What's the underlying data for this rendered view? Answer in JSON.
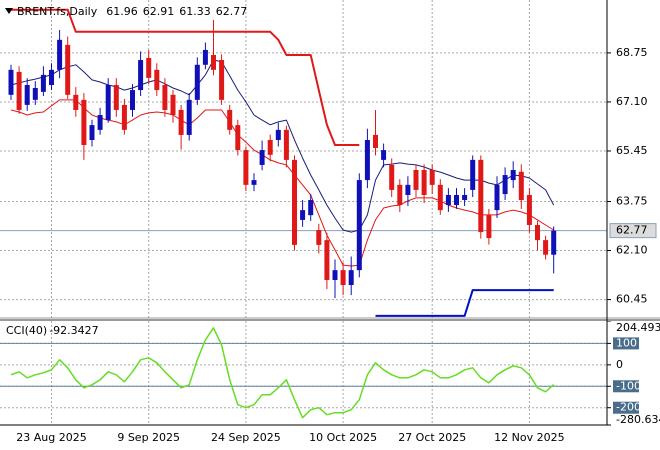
{
  "chart_data": [
    {
      "type": "candlestick",
      "title": "BRENT.fs,Daily",
      "categories": [
        null,
        null,
        null,
        null,
        null,
        "23 Aug 2025",
        null,
        null,
        null,
        null,
        null,
        null,
        null,
        null,
        null,
        null,
        null,
        "9 Sep 2025",
        null,
        null,
        null,
        null,
        null,
        null,
        null,
        null,
        null,
        null,
        null,
        "24 Sep 2025",
        null,
        null,
        null,
        null,
        null,
        null,
        null,
        null,
        null,
        null,
        null,
        "10 Oct 2025",
        null,
        null,
        null,
        null,
        null,
        null,
        null,
        null,
        null,
        null,
        "27 Oct 2025",
        null,
        null,
        null,
        null,
        null,
        null,
        null,
        null,
        null,
        null,
        null,
        "12 Nov 2025",
        null,
        null,
        null
      ],
      "open": [
        67.34,
        68.11,
        67.0,
        67.17,
        67.44,
        67.67,
        68.18,
        69.02,
        67.34,
        67.17,
        65.82,
        66.16,
        66.49,
        67.67,
        67.0,
        66.83,
        67.5,
        68.58,
        68.18,
        67.67,
        67.34,
        66.83,
        65.99,
        67.17,
        68.35,
        68.68,
        68.51,
        66.83,
        66.32,
        65.48,
        64.31,
        64.98,
        65.82,
        65.82,
        66.16,
        65.15,
        63.13,
        63.29,
        62.79,
        62.45,
        61.11,
        61.44,
        60.94,
        61.44,
        64.47,
        65.99,
        65.15,
        64.98,
        64.31,
        63.97,
        64.81,
        64.81,
        64.81,
        64.31,
        63.63,
        63.63,
        63.8,
        64.14,
        65.15,
        63.29,
        63.46,
        64.0,
        64.47,
        64.75,
        63.97,
        62.96,
        62.45,
        61.96
      ],
      "high": [
        68.35,
        68.3,
        67.9,
        67.8,
        68.3,
        68.4,
        69.52,
        69.3,
        67.6,
        67.4,
        66.5,
        66.9,
        67.9,
        67.9,
        67.2,
        67.7,
        68.8,
        68.85,
        68.4,
        67.9,
        67.5,
        67.0,
        67.4,
        68.6,
        69.1,
        69.86,
        68.7,
        67.0,
        66.5,
        65.6,
        64.7,
        65.8,
        66.0,
        66.4,
        66.3,
        65.3,
        63.8,
        64.0,
        63.0,
        62.7,
        61.8,
        61.7,
        61.9,
        64.7,
        66.2,
        66.83,
        65.7,
        65.2,
        64.5,
        64.6,
        65.0,
        65.0,
        65.0,
        64.5,
        64.2,
        64.2,
        64.2,
        65.3,
        65.3,
        63.5,
        64.6,
        64.9,
        65.1,
        65.0,
        64.2,
        63.1,
        62.6,
        62.91
      ],
      "low": [
        67.17,
        66.7,
        66.8,
        67.0,
        67.3,
        67.5,
        67.9,
        67.2,
        66.6,
        65.15,
        65.6,
        66.0,
        66.4,
        66.6,
        66.0,
        66.6,
        67.3,
        67.7,
        67.3,
        66.6,
        66.4,
        65.5,
        65.8,
        67.0,
        68.2,
        68.0,
        67.0,
        66.0,
        65.3,
        64.1,
        64.1,
        64.8,
        65.1,
        65.6,
        64.9,
        62.1,
        62.9,
        63.1,
        62.0,
        60.8,
        60.5,
        60.6,
        60.6,
        61.2,
        64.2,
        65.3,
        64.9,
        63.9,
        63.4,
        63.6,
        63.9,
        63.7,
        64.0,
        63.3,
        63.4,
        63.5,
        63.6,
        63.9,
        62.5,
        62.3,
        63.2,
        63.8,
        64.2,
        63.5,
        62.7,
        62.1,
        61.8,
        61.33
      ],
      "close": [
        68.18,
        66.83,
        67.67,
        67.57,
        68.01,
        68.18,
        69.19,
        67.34,
        66.83,
        65.65,
        66.32,
        66.66,
        67.67,
        66.83,
        66.16,
        67.5,
        68.51,
        67.91,
        67.5,
        66.83,
        66.66,
        65.99,
        67.17,
        68.35,
        68.85,
        68.18,
        67.17,
        66.16,
        65.48,
        64.31,
        64.47,
        65.48,
        65.32,
        66.16,
        65.15,
        62.29,
        63.46,
        63.8,
        62.29,
        61.11,
        61.44,
        60.94,
        61.44,
        64.47,
        65.82,
        65.55,
        65.48,
        64.14,
        63.63,
        64.31,
        64.14,
        63.97,
        64.31,
        63.46,
        63.97,
        63.97,
        63.97,
        65.15,
        62.72,
        62.52,
        64.31,
        64.64,
        64.81,
        63.8,
        62.96,
        62.45,
        61.96,
        62.77
      ],
      "up_color": "#1010b8",
      "down_color": "#e01818",
      "lines": [
        {
          "color": "#1a1f7a",
          "values": [
            67.67,
            67.74,
            67.81,
            67.87,
            67.94,
            68.01,
            68.18,
            68.28,
            68.35,
            68.11,
            67.84,
            67.77,
            67.67,
            67.61,
            67.5,
            67.57,
            67.67,
            67.77,
            67.84,
            67.71,
            67.57,
            67.47,
            67.34,
            67.67,
            68.01,
            68.51,
            68.45,
            67.98,
            67.5,
            67.1,
            66.66,
            66.49,
            66.33,
            66.43,
            66.49,
            65.82,
            65.21,
            64.64,
            64.14,
            63.63,
            63.19,
            62.79,
            62.72,
            62.79,
            63.3,
            64.47,
            64.98,
            65.01,
            65.05,
            65.01,
            64.98,
            64.91,
            64.81,
            64.74,
            64.64,
            64.54,
            64.47,
            64.47,
            64.47,
            64.37,
            64.31,
            64.47,
            64.64,
            64.61,
            64.54,
            64.34,
            64.14,
            63.63
          ]
        },
        {
          "color": "#e01818",
          "values": [
            66.83,
            66.76,
            66.66,
            66.73,
            66.76,
            66.97,
            67.17,
            67.17,
            67.17,
            66.9,
            66.66,
            66.56,
            66.49,
            66.43,
            66.33,
            66.49,
            66.66,
            66.73,
            66.76,
            66.73,
            66.66,
            66.49,
            66.33,
            66.56,
            66.83,
            66.83,
            66.83,
            66.43,
            65.99,
            65.75,
            65.48,
            65.32,
            65.15,
            65.05,
            64.98,
            64.64,
            64.31,
            63.97,
            63.3,
            62.62,
            62.12,
            61.61,
            61.58,
            61.61,
            62.45,
            63.13,
            63.53,
            63.6,
            63.63,
            63.77,
            63.87,
            63.87,
            63.87,
            63.77,
            63.63,
            63.53,
            63.46,
            63.4,
            63.3,
            63.3,
            63.3,
            63.4,
            63.46,
            63.4,
            63.3,
            63.13,
            62.96,
            62.79
          ]
        },
        {
          "color": "#e01818",
          "values": [
            70.2,
            70.2,
            70.2,
            70.2,
            70.2,
            70.2,
            70.2,
            70.2,
            69.46,
            69.46,
            69.46,
            69.46,
            69.46,
            69.46,
            69.46,
            69.46,
            69.46,
            69.46,
            69.46,
            69.46,
            69.46,
            69.46,
            69.46,
            69.46,
            69.46,
            69.46,
            69.46,
            69.46,
            69.46,
            69.46,
            69.46,
            69.46,
            69.46,
            69.19,
            68.68,
            68.68,
            68.68,
            68.68,
            67.5,
            66.33,
            65.65,
            65.65,
            65.65,
            65.65,
            null,
            null,
            null,
            null,
            null,
            null,
            null,
            null,
            null,
            null,
            null,
            null,
            null,
            null,
            null,
            null,
            null,
            null,
            null,
            null,
            null,
            null,
            null,
            null
          ]
        },
        {
          "color": "#0010c8",
          "values": [
            null,
            null,
            null,
            null,
            null,
            null,
            null,
            null,
            null,
            null,
            null,
            null,
            null,
            null,
            null,
            null,
            null,
            null,
            null,
            null,
            null,
            null,
            null,
            null,
            null,
            null,
            null,
            null,
            null,
            null,
            null,
            null,
            null,
            null,
            null,
            null,
            null,
            null,
            null,
            null,
            null,
            null,
            null,
            null,
            null,
            59.9,
            59.9,
            59.9,
            59.9,
            59.9,
            59.9,
            59.9,
            59.9,
            59.9,
            59.9,
            59.9,
            59.9,
            60.77,
            60.77,
            60.77,
            60.77,
            60.77,
            60.77,
            60.77,
            60.77,
            60.77,
            60.77,
            60.77
          ]
        }
      ],
      "ylim": [
        59.83,
        70.53
      ],
      "yticks": [
        68.75,
        {
          "value": 67.1,
          "label": "67.10"
        },
        65.45,
        63.75,
        {
          "value": 62.1,
          "label": "62.10"
        },
        60.45
      ],
      "grid": true
    },
    {
      "type": "line",
      "title": "CCI(40)",
      "color": "#66dd22",
      "values": [
        -46.5,
        -32.6,
        -60.5,
        -46.5,
        -37.2,
        -23.3,
        23.3,
        -14,
        -69.8,
        -107,
        -93,
        -69.8,
        -32.6,
        -46.5,
        -79.1,
        -32.6,
        23.3,
        32.6,
        9.3,
        -32.6,
        -69.8,
        -107,
        -93,
        23.3,
        116.3,
        172.1,
        93,
        -69.8,
        -186,
        -200,
        -186,
        -139.5,
        -139.5,
        -107,
        -69.8,
        -162.8,
        -246.5,
        -209.3,
        -200,
        -232.6,
        -223.3,
        -223.3,
        -209.3,
        -162.8,
        -46.5,
        9.3,
        -23.3,
        -46.5,
        -60.5,
        -60.5,
        -46.5,
        -23.3,
        -32.6,
        -60.5,
        -60.5,
        -46.5,
        -23.3,
        -14,
        -60.5,
        -83.7,
        -46.5,
        -23.3,
        -4.7,
        -14,
        -46.5,
        -107,
        -125.6,
        -92.3427
      ],
      "ylim": [
        -280.634,
        204.493
      ],
      "yticks": [
        204.493,
        100,
        0,
        -100,
        -200,
        -280.634
      ],
      "levels": [
        100,
        -100
      ],
      "grid": true
    }
  ]
}
